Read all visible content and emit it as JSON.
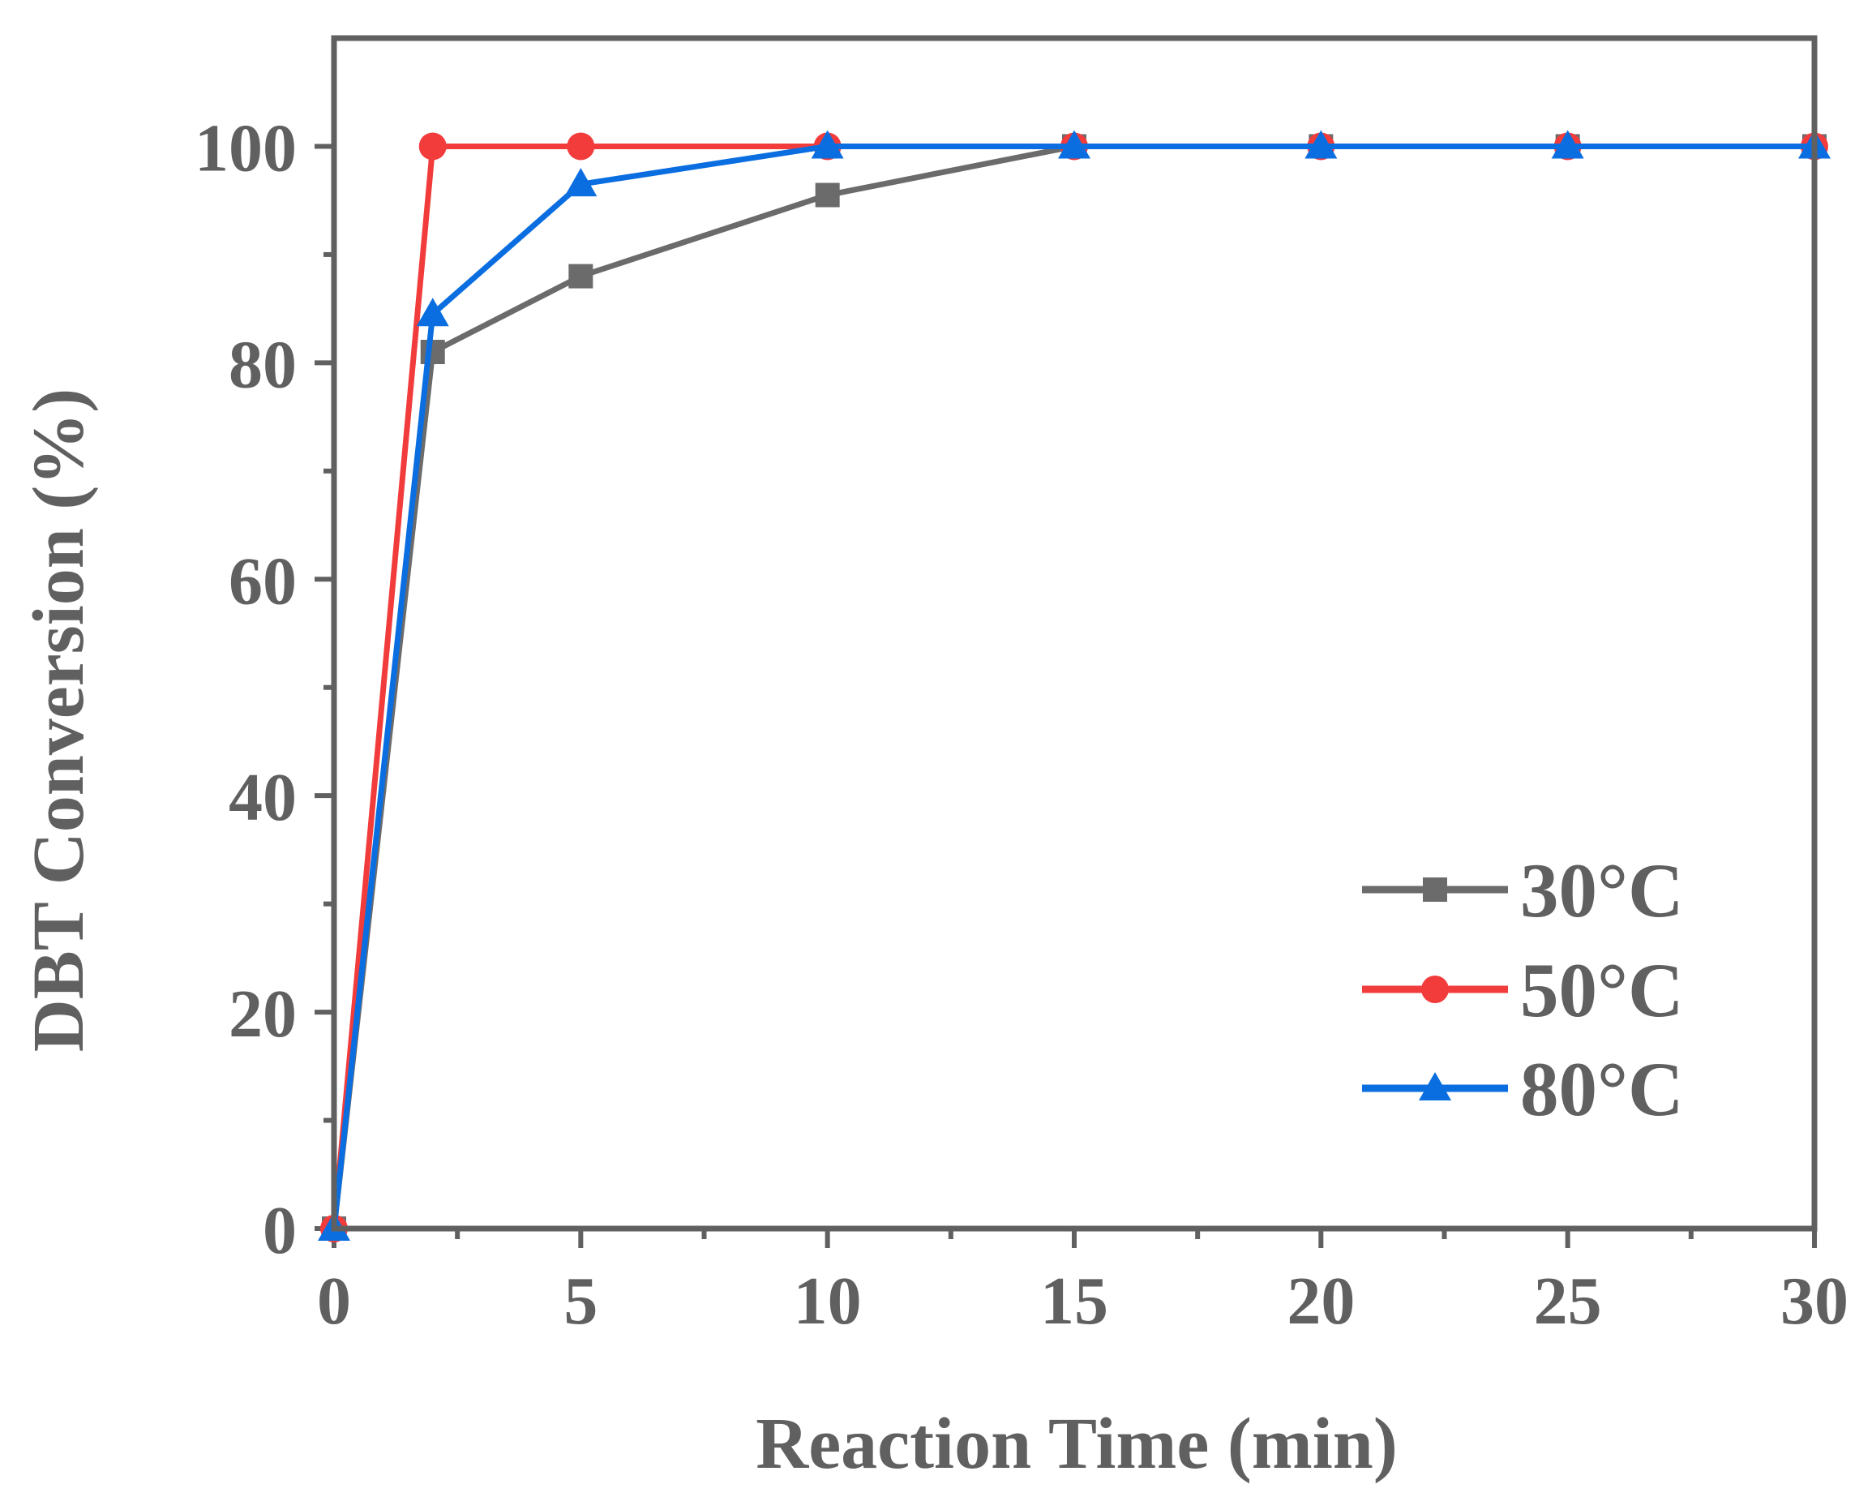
{
  "chart_data": {
    "type": "line",
    "title": "",
    "xlabel": "Reaction Time (min)",
    "ylabel": "DBT Conversion (%)",
    "xlim": [
      0,
      30
    ],
    "ylim": [
      0,
      110
    ],
    "xticks": [
      0,
      5,
      10,
      15,
      20,
      25,
      30
    ],
    "xtick_labels": [
      "0",
      "5",
      "10",
      "15",
      "20",
      "25",
      "30"
    ],
    "yticks": [
      0,
      20,
      40,
      60,
      80,
      100
    ],
    "ytick_labels": [
      "0",
      "20",
      "40",
      "60",
      "80",
      "100"
    ],
    "grid": false,
    "legend_position": "bottom-right",
    "series": [
      {
        "name": "30°C",
        "color": "#6b6b6b",
        "marker": "square",
        "x": [
          0,
          2,
          5,
          10,
          15,
          20,
          25,
          30
        ],
        "y": [
          0,
          81,
          88,
          95.5,
          100,
          100,
          100,
          100
        ]
      },
      {
        "name": "50°C",
        "color": "#f23c3c",
        "marker": "circle",
        "x": [
          0,
          2,
          5,
          10,
          15,
          20,
          25,
          30
        ],
        "y": [
          0,
          100,
          100,
          100,
          100,
          100,
          100,
          100
        ]
      },
      {
        "name": "80°C",
        "color": "#0a6ee0",
        "marker": "triangle",
        "x": [
          0,
          2,
          5,
          10,
          15,
          20,
          25,
          30
        ],
        "y": [
          0,
          84.5,
          96.5,
          100,
          100,
          100,
          100,
          100
        ]
      }
    ]
  }
}
